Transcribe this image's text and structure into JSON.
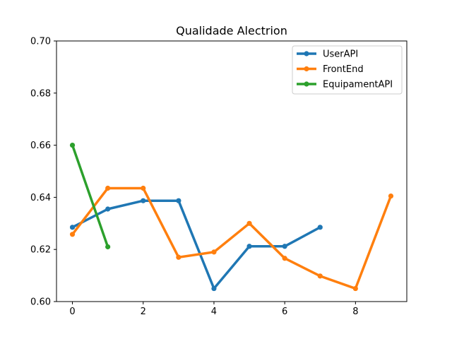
{
  "chart_data": {
    "type": "line",
    "title": "Qualidade Alectrion",
    "xlabel": "",
    "ylabel": "",
    "xlim": [
      -0.45,
      9.45
    ],
    "ylim": [
      0.6,
      0.7
    ],
    "xticks": [
      0,
      2,
      4,
      6,
      8
    ],
    "xtick_labels": [
      "0",
      "2",
      "4",
      "6",
      "8"
    ],
    "yticks": [
      0.6,
      0.62,
      0.64,
      0.66,
      0.68,
      0.7
    ],
    "ytick_labels": [
      "0.60",
      "0.62",
      "0.64",
      "0.66",
      "0.68",
      "0.70"
    ],
    "grid": false,
    "legend_position": "top-right",
    "series": [
      {
        "name": "UserAPI",
        "color": "#1f77b4",
        "x": [
          0,
          1,
          2,
          3,
          4,
          5,
          6,
          7
        ],
        "values": [
          0.6285,
          0.6355,
          0.6387,
          0.6387,
          0.605,
          0.6212,
          0.6212,
          0.6285
        ]
      },
      {
        "name": "FrontEnd",
        "color": "#ff7f0e",
        "x": [
          0,
          1,
          2,
          3,
          4,
          5,
          6,
          7,
          8,
          9
        ],
        "values": [
          0.6258,
          0.6435,
          0.6435,
          0.617,
          0.619,
          0.63,
          0.6166,
          0.6098,
          0.605,
          0.6405
        ]
      },
      {
        "name": "EquipamentAPI",
        "color": "#2ca02c",
        "x": [
          0,
          1
        ],
        "values": [
          0.66,
          0.621
        ]
      }
    ]
  }
}
